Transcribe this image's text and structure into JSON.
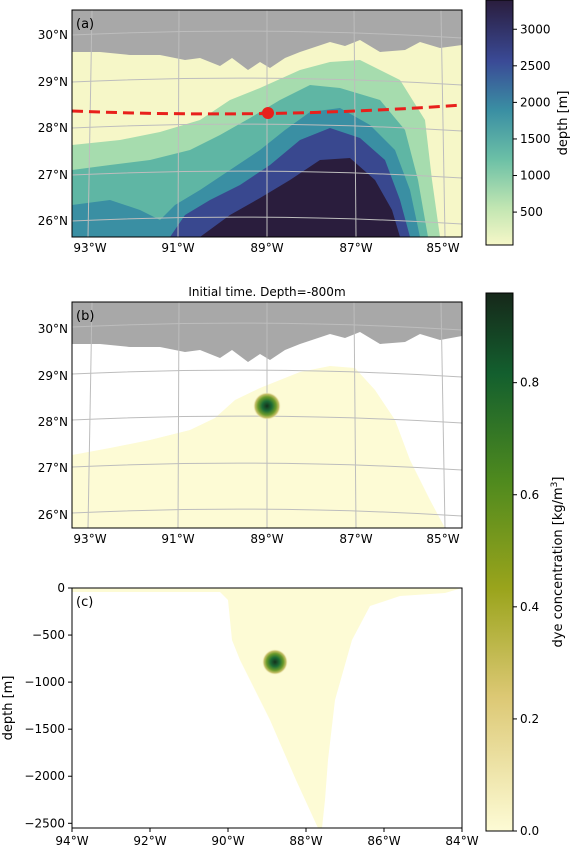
{
  "figure": {
    "panels": [
      {
        "label": "(a)"
      },
      {
        "label": "(b)",
        "title": "Initial time. Depth=-800m"
      },
      {
        "label": "(c)"
      }
    ],
    "lat_ticks": [
      "30°N",
      "29°N",
      "28°N",
      "27°N",
      "26°N"
    ],
    "lon_ticks_map": [
      "93°W",
      "91°W",
      "89°W",
      "87°W",
      "85°W"
    ],
    "colors": {
      "land": "#a8a8a8",
      "section_line": "#e8201c",
      "dye_low": "#fdfbd5",
      "dye_high": "#16281a",
      "depth_low": "#f6f7c8",
      "depth_high": "#2a1d3d"
    }
  },
  "chart_data": [
    {
      "type": "heatmap",
      "panel": "(a)",
      "description_field": "bathymetry",
      "lat_range": [
        25.7,
        30.4
      ],
      "lon_range": [
        -93.5,
        -84.5
      ],
      "section_line": {
        "lat": 28.3,
        "style": "dashed"
      },
      "marker": {
        "lon": -88.8,
        "lat": 28.3
      },
      "colorbar": {
        "label": "depth [m]",
        "ticks": [
          500,
          1000,
          1500,
          2000,
          2500,
          3000
        ],
        "tick_labels": [
          "500",
          "1000",
          "1500",
          "2000",
          "2500",
          "3000"
        ],
        "range": [
          50,
          3400
        ]
      }
    },
    {
      "type": "heatmap",
      "panel": "(b)",
      "title": "Initial time. Depth=-800m",
      "lat_range": [
        25.7,
        30.4
      ],
      "lon_range": [
        -93.5,
        -84.5
      ],
      "dye_center": {
        "lon": -88.8,
        "lat": 28.3,
        "max": 0.95
      }
    },
    {
      "type": "heatmap",
      "panel": "(c)",
      "xlim": [
        -94,
        -84
      ],
      "ylim": [
        -2550,
        0
      ],
      "xticks": [
        "94°W",
        "92°W",
        "90°W",
        "88°W",
        "86°W",
        "84°W"
      ],
      "xtick_values": [
        -94,
        -92,
        -90,
        -88,
        -86,
        -84
      ],
      "yticks": [
        "0",
        "−500",
        "−1000",
        "−1500",
        "−2000",
        "−2500"
      ],
      "ytick_values": [
        0,
        -500,
        -1000,
        -1500,
        -2000,
        -2500
      ],
      "ylabel": "depth [m]",
      "dye_center": {
        "lon": -88.8,
        "depth": -800,
        "max": 0.95
      },
      "colorbar": {
        "label": "dye concentration [kg/m³]",
        "ticks": [
          0.0,
          0.2,
          0.4,
          0.6,
          0.8
        ],
        "tick_labels": [
          "0.0",
          "0.2",
          "0.4",
          "0.6",
          "0.8"
        ],
        "range": [
          0,
          0.96
        ]
      }
    }
  ]
}
